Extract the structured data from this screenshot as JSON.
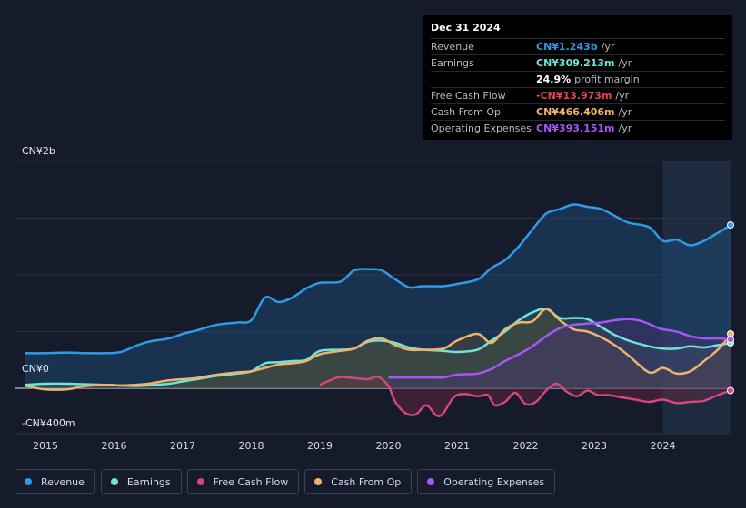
{
  "tooltip": {
    "date": "Dec 31 2024",
    "rows": [
      {
        "label": "Revenue",
        "value": "CN¥1.243b",
        "unit": "/yr",
        "color": "#2f9ae6"
      },
      {
        "label": "Earnings",
        "value": "CN¥309.213m",
        "unit": "/yr",
        "color": "#6ee5d6"
      },
      {
        "label": "",
        "value": "24.9%",
        "unit": "profit margin",
        "color": "#ffffff"
      },
      {
        "label": "Free Cash Flow",
        "value": "-CN¥13.973m",
        "unit": "/yr",
        "color": "#e8445a"
      },
      {
        "label": "Cash From Op",
        "value": "CN¥466.406m",
        "unit": "/yr",
        "color": "#f0b36b"
      },
      {
        "label": "Operating Expenses",
        "value": "CN¥393.151m",
        "unit": "/yr",
        "color": "#a855f7"
      }
    ]
  },
  "legend": [
    {
      "label": "Revenue",
      "color": "#2f9ae6"
    },
    {
      "label": "Earnings",
      "color": "#6ee5d6"
    },
    {
      "label": "Free Cash Flow",
      "color": "#d6457d"
    },
    {
      "label": "Cash From Op",
      "color": "#f0b36b"
    },
    {
      "label": "Operating Expenses",
      "color": "#a855f7"
    }
  ],
  "chart_data": {
    "type": "area",
    "y_tick_labels": [
      "CN¥2b",
      "CN¥0",
      "-CN¥400m"
    ],
    "ylim": [
      -400,
      2000
    ],
    "xlim": [
      2014.55,
      2025.0
    ],
    "x_ticks": [
      2015,
      2016,
      2017,
      2018,
      2019,
      2020,
      2021,
      2022,
      2023,
      2024
    ],
    "x_tick_labels": [
      "2015",
      "2016",
      "2017",
      "2018",
      "2019",
      "2020",
      "2021",
      "2022",
      "2023",
      "2024"
    ],
    "highlight_range": [
      2024.0,
      2025.0
    ],
    "grid": true,
    "series": [
      {
        "name": "Revenue",
        "color": "#2f9ae6",
        "fill": "#1f4f7c",
        "x": [
          2014.7,
          2015.0,
          2015.3,
          2015.6,
          2015.9,
          2016.1,
          2016.3,
          2016.5,
          2016.8,
          2017.0,
          2017.2,
          2017.5,
          2017.8,
          2018.0,
          2018.2,
          2018.4,
          2018.6,
          2018.8,
          2019.0,
          2019.3,
          2019.5,
          2019.7,
          2019.9,
          2020.1,
          2020.3,
          2020.5,
          2020.8,
          2021.0,
          2021.3,
          2021.5,
          2021.7,
          2021.9,
          2022.1,
          2022.3,
          2022.5,
          2022.7,
          2022.9,
          2023.1,
          2023.3,
          2023.5,
          2023.8,
          2024.0,
          2024.2,
          2024.4,
          2024.6,
          2024.8,
          2025.0
        ],
        "y": [
          310,
          310,
          315,
          310,
          310,
          320,
          370,
          410,
          440,
          480,
          510,
          560,
          580,
          600,
          800,
          760,
          800,
          880,
          930,
          940,
          1040,
          1050,
          1040,
          960,
          890,
          900,
          900,
          920,
          960,
          1060,
          1130,
          1250,
          1400,
          1540,
          1580,
          1620,
          1600,
          1580,
          1520,
          1460,
          1420,
          1300,
          1310,
          1260,
          1300,
          1370,
          1440
        ]
      },
      {
        "name": "Earnings",
        "color": "#6ee5d6",
        "fill": "#2b5a55",
        "x": [
          2014.7,
          2015.0,
          2015.3,
          2015.6,
          2015.9,
          2016.1,
          2016.3,
          2016.5,
          2016.8,
          2017.0,
          2017.2,
          2017.5,
          2017.8,
          2018.0,
          2018.2,
          2018.4,
          2018.6,
          2018.8,
          2019.0,
          2019.3,
          2019.5,
          2019.7,
          2019.9,
          2020.1,
          2020.3,
          2020.5,
          2020.8,
          2021.0,
          2021.3,
          2021.5,
          2021.7,
          2021.9,
          2022.1,
          2022.3,
          2022.5,
          2022.7,
          2022.9,
          2023.1,
          2023.3,
          2023.5,
          2023.8,
          2024.0,
          2024.2,
          2024.4,
          2024.6,
          2024.8,
          2025.0
        ],
        "y": [
          30,
          40,
          40,
          35,
          30,
          25,
          20,
          25,
          40,
          60,
          80,
          110,
          130,
          150,
          220,
          230,
          240,
          250,
          330,
          340,
          350,
          410,
          420,
          400,
          360,
          340,
          330,
          320,
          340,
          420,
          500,
          600,
          670,
          700,
          620,
          620,
          610,
          540,
          470,
          420,
          370,
          350,
          350,
          370,
          360,
          380,
          400
        ]
      },
      {
        "name": "Free Cash Flow",
        "color": "#d6457d",
        "fill": "#6b2a3e",
        "x": [
          2019.0,
          2019.15,
          2019.3,
          2019.5,
          2019.7,
          2019.85,
          2020.0,
          2020.1,
          2020.25,
          2020.4,
          2020.55,
          2020.7,
          2020.8,
          2020.95,
          2021.1,
          2021.3,
          2021.45,
          2021.55,
          2021.7,
          2021.85,
          2022.0,
          2022.15,
          2022.3,
          2022.45,
          2022.6,
          2022.75,
          2022.9,
          2023.05,
          2023.2,
          2023.4,
          2023.6,
          2023.8,
          2024.0,
          2024.2,
          2024.4,
          2024.6,
          2024.8,
          2025.0
        ],
        "y": [
          30,
          70,
          100,
          90,
          80,
          100,
          20,
          -120,
          -220,
          -230,
          -150,
          -240,
          -220,
          -80,
          -50,
          -70,
          -60,
          -150,
          -120,
          -40,
          -140,
          -120,
          -20,
          40,
          -30,
          -70,
          -20,
          -60,
          -60,
          -80,
          -100,
          -120,
          -100,
          -130,
          -120,
          -110,
          -60,
          -20
        ]
      },
      {
        "name": "Cash From Op",
        "color": "#f0b36b",
        "fill": "#5a4a36",
        "x": [
          2014.7,
          2015.0,
          2015.3,
          2015.6,
          2015.9,
          2016.1,
          2016.3,
          2016.5,
          2016.8,
          2017.0,
          2017.2,
          2017.5,
          2017.8,
          2018.0,
          2018.2,
          2018.4,
          2018.6,
          2018.8,
          2019.0,
          2019.3,
          2019.5,
          2019.7,
          2019.9,
          2020.1,
          2020.3,
          2020.5,
          2020.8,
          2021.0,
          2021.3,
          2021.5,
          2021.7,
          2021.9,
          2022.1,
          2022.3,
          2022.5,
          2022.7,
          2022.9,
          2023.1,
          2023.3,
          2023.5,
          2023.8,
          2024.0,
          2024.2,
          2024.4,
          2024.6,
          2024.8,
          2025.0
        ],
        "y": [
          20,
          -10,
          -10,
          20,
          30,
          25,
          30,
          40,
          70,
          80,
          90,
          120,
          140,
          150,
          180,
          210,
          220,
          240,
          300,
          330,
          350,
          420,
          440,
          380,
          340,
          340,
          350,
          420,
          480,
          400,
          520,
          580,
          590,
          700,
          600,
          520,
          500,
          450,
          380,
          290,
          140,
          180,
          130,
          150,
          240,
          340,
          480
        ]
      },
      {
        "name": "Operating Expenses",
        "color": "#a855f7",
        "fill": "#4a3470",
        "x": [
          2020.0,
          2020.3,
          2020.6,
          2020.8,
          2021.0,
          2021.3,
          2021.5,
          2021.7,
          2021.9,
          2022.1,
          2022.3,
          2022.5,
          2022.7,
          2022.9,
          2023.1,
          2023.3,
          2023.5,
          2023.7,
          2023.9,
          2024.0,
          2024.2,
          2024.4,
          2024.6,
          2024.8,
          2025.0
        ],
        "y": [
          95,
          95,
          95,
          95,
          120,
          130,
          170,
          240,
          300,
          370,
          460,
          530,
          560,
          570,
          580,
          600,
          610,
          590,
          540,
          520,
          500,
          460,
          440,
          440,
          430
        ]
      }
    ]
  }
}
